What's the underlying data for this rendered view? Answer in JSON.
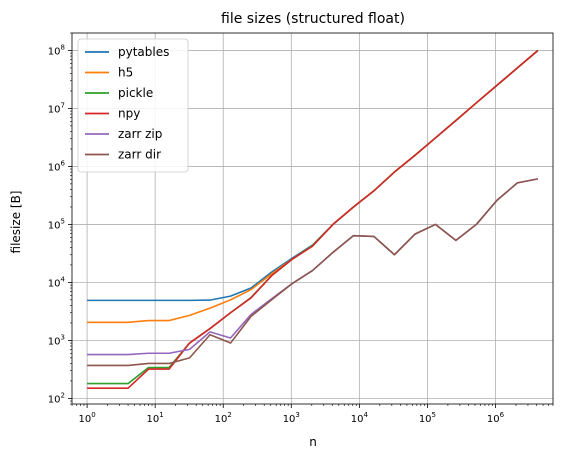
{
  "chart_data": {
    "type": "line",
    "title": "file sizes (structured float)",
    "xlabel": "n",
    "ylabel": "filesize [B]",
    "xscale": "log",
    "yscale": "log",
    "xlim": [
      0.6,
      7000000
    ],
    "ylim": [
      80,
      200000000
    ],
    "grid": true,
    "legend_position": "top-left",
    "x_ticks": [
      {
        "value": 1,
        "base": "10",
        "exp": "0"
      },
      {
        "value": 10,
        "base": "10",
        "exp": "1"
      },
      {
        "value": 100,
        "base": "10",
        "exp": "2"
      },
      {
        "value": 1000,
        "base": "10",
        "exp": "3"
      },
      {
        "value": 10000,
        "base": "10",
        "exp": "4"
      },
      {
        "value": 100000,
        "base": "10",
        "exp": "5"
      },
      {
        "value": 1000000,
        "base": "10",
        "exp": "6"
      }
    ],
    "y_ticks": [
      {
        "value": 100,
        "base": "10",
        "exp": "2"
      },
      {
        "value": 1000,
        "base": "10",
        "exp": "3"
      },
      {
        "value": 10000,
        "base": "10",
        "exp": "4"
      },
      {
        "value": 100000,
        "base": "10",
        "exp": "5"
      },
      {
        "value": 1000000,
        "base": "10",
        "exp": "6"
      },
      {
        "value": 10000000,
        "base": "10",
        "exp": "7"
      },
      {
        "value": 100000000,
        "base": "10",
        "exp": "8"
      }
    ],
    "x": [
      1,
      2,
      4,
      8,
      16,
      32,
      64,
      128,
      256,
      512,
      1024,
      2048,
      4096,
      8192,
      16384,
      32768,
      65536,
      131072,
      262144,
      524288,
      1048576,
      2097152,
      4194304
    ],
    "series": [
      {
        "name": "pytables",
        "color": "#1f77b4",
        "values": [
          4900,
          4900,
          4900,
          4900,
          4900,
          4900,
          4950,
          5800,
          8000,
          15000,
          26000,
          44000,
          100000,
          200000,
          380000,
          800000,
          1550000,
          3100000,
          6200000,
          12500000,
          25000000,
          50000000,
          100000000
        ]
      },
      {
        "name": "h5",
        "color": "#ff7f0e",
        "values": [
          2050,
          2050,
          2050,
          2200,
          2200,
          2700,
          3600,
          5000,
          7500,
          14000,
          25000,
          43000,
          100000,
          200000,
          380000,
          800000,
          1550000,
          3100000,
          6200000,
          12500000,
          25000000,
          50000000,
          100000000
        ]
      },
      {
        "name": "pickle",
        "color": "#2ca02c",
        "values": [
          180,
          180,
          180,
          340,
          340,
          900,
          1600,
          3000,
          5500,
          13000,
          25000,
          43000,
          100000,
          200000,
          380000,
          800000,
          1550000,
          3100000,
          6200000,
          12500000,
          25000000,
          50000000,
          100000000
        ]
      },
      {
        "name": "npy",
        "color": "#d62728",
        "values": [
          150,
          150,
          150,
          320,
          320,
          900,
          1600,
          3000,
          5400,
          13000,
          25000,
          42000,
          100000,
          200000,
          380000,
          800000,
          1550000,
          3100000,
          6200000,
          12500000,
          25000000,
          50000000,
          100000000
        ]
      },
      {
        "name": "zarr zip",
        "color": "#9467bd",
        "values": [
          570,
          570,
          570,
          600,
          600,
          700,
          1400,
          1100,
          2800,
          5200,
          9500,
          16000,
          33000,
          64000,
          62000,
          30000,
          68000,
          100000,
          53000,
          100000,
          260000,
          520000,
          610000
        ]
      },
      {
        "name": "zarr dir",
        "color": "#8c564b",
        "values": [
          370,
          370,
          370,
          400,
          400,
          500,
          1250,
          900,
          2600,
          5000,
          9500,
          16000,
          33000,
          64000,
          62000,
          30000,
          68000,
          100000,
          53000,
          100000,
          260000,
          520000,
          610000
        ]
      }
    ]
  }
}
